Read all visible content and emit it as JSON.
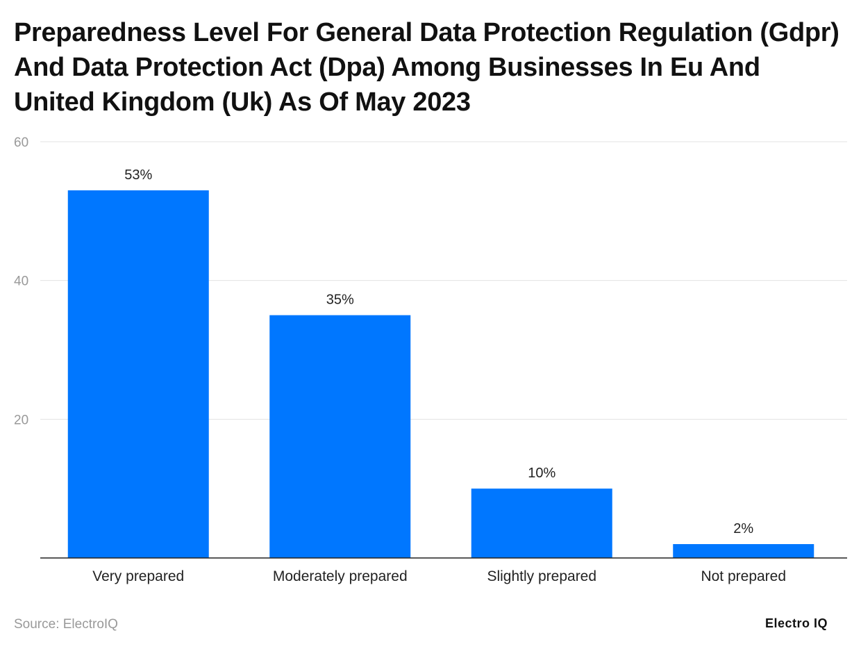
{
  "chart_data": {
    "type": "bar",
    "title": "Preparedness Level For General Data Protection Regulation (Gdpr) And Data Protection Act (Dpa) Among Businesses In Eu And United Kingdom (Uk) As Of May 2023",
    "categories": [
      "Very prepared",
      "Moderately prepared",
      "Slightly prepared",
      "Not prepared"
    ],
    "values": [
      53,
      35,
      10,
      2
    ],
    "data_labels": [
      "53%",
      "35%",
      "10%",
      "2%"
    ],
    "xlabel": "",
    "ylabel": "",
    "ylim": [
      0,
      60
    ],
    "yticks": [
      20,
      40,
      60
    ],
    "grid": true,
    "legend": "none",
    "bar_color": "#0077FF"
  },
  "footer": {
    "source": "Source: ElectroIQ",
    "logo": "Electro IQ"
  }
}
